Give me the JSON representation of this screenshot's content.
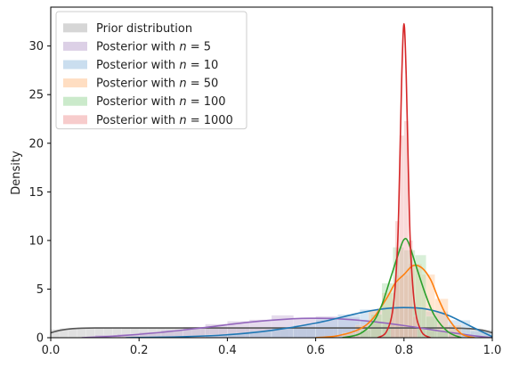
{
  "chart_data": {
    "type": "area",
    "title": "",
    "xlabel": "",
    "ylabel": "Density",
    "xlim": [
      0,
      1
    ],
    "ylim": [
      0,
      34
    ],
    "xticks": [
      0.0,
      0.2,
      0.4,
      0.6,
      0.8,
      1.0
    ],
    "xtick_labels": [
      "0.0",
      "0.2",
      "0.4",
      "0.6",
      "0.8",
      "1.0"
    ],
    "yticks": [
      0,
      5,
      10,
      15,
      20,
      25,
      30
    ],
    "ytick_labels": [
      "0",
      "5",
      "10",
      "15",
      "20",
      "25",
      "30"
    ],
    "grid": false,
    "legend": "top-left",
    "series": [
      {
        "name": "Prior distribution",
        "legend_prefix": "Prior distribution",
        "legend_n": "",
        "color": "#555555",
        "curve": {
          "x": [
            0.0,
            0.02,
            0.05,
            0.1,
            0.2,
            0.3,
            0.5,
            0.7,
            0.8,
            0.9,
            0.95,
            0.98,
            1.0
          ],
          "y": [
            0.5,
            0.75,
            0.93,
            1.0,
            1.0,
            1.0,
            1.0,
            1.0,
            1.0,
            1.0,
            0.93,
            0.75,
            0.5
          ]
        }
      },
      {
        "name": "Posterior with n = 5",
        "legend_prefix": "Posterior with ",
        "legend_n": "5",
        "color": "#9467bd",
        "curve": {
          "x": [
            0.07,
            0.15,
            0.25,
            0.35,
            0.45,
            0.55,
            0.6,
            0.65,
            0.72,
            0.8,
            0.88,
            0.95,
            1.0
          ],
          "y": [
            0.0,
            0.18,
            0.55,
            1.05,
            1.6,
            1.95,
            2.0,
            1.95,
            1.7,
            1.25,
            0.7,
            0.25,
            0.0
          ]
        }
      },
      {
        "name": "Posterior with n = 10",
        "legend_prefix": "Posterior with ",
        "legend_n": "10",
        "color": "#1f77b4",
        "curve": {
          "x": [
            0.17,
            0.3,
            0.4,
            0.5,
            0.6,
            0.7,
            0.75,
            0.8,
            0.85,
            0.9,
            0.95,
            1.0
          ],
          "y": [
            0.0,
            0.1,
            0.3,
            0.75,
            1.5,
            2.55,
            2.95,
            3.1,
            2.95,
            2.3,
            1.2,
            0.1
          ]
        }
      },
      {
        "name": "Posterior with n = 50",
        "legend_prefix": "Posterior with ",
        "legend_n": "50",
        "color": "#ff7f0e",
        "curve": {
          "x": [
            0.6,
            0.65,
            0.7,
            0.73,
            0.76,
            0.78,
            0.8,
            0.82,
            0.84,
            0.86,
            0.88,
            0.9,
            0.93,
            0.96
          ],
          "y": [
            0.0,
            0.2,
            0.9,
            2.0,
            4.0,
            5.6,
            6.5,
            7.4,
            7.2,
            6.0,
            3.8,
            2.0,
            0.4,
            0.0
          ]
        }
      },
      {
        "name": "Posterior with n = 100",
        "legend_prefix": "Posterior with ",
        "legend_n": "100",
        "color": "#2ca02c",
        "curve": {
          "x": [
            0.66,
            0.7,
            0.73,
            0.75,
            0.77,
            0.79,
            0.8,
            0.81,
            0.83,
            0.85,
            0.87,
            0.9,
            0.93
          ],
          "y": [
            0.0,
            0.4,
            1.6,
            3.4,
            6.2,
            9.0,
            10.1,
            9.8,
            7.0,
            4.3,
            2.2,
            0.6,
            0.0
          ]
        }
      },
      {
        "name": "Posterior with n = 1000",
        "legend_prefix": "Posterior with ",
        "legend_n": "1000",
        "color": "#d62728",
        "curve": {
          "x": [
            0.74,
            0.76,
            0.775,
            0.785,
            0.79,
            0.795,
            0.8,
            0.805,
            0.81,
            0.815,
            0.825,
            0.84,
            0.86
          ],
          "y": [
            0.0,
            0.6,
            3.0,
            9.0,
            17.0,
            27.0,
            32.3,
            27.0,
            17.0,
            9.0,
            3.0,
            0.6,
            0.0
          ]
        }
      }
    ],
    "histograms": [
      {
        "series": 0,
        "color": "#bbbbbb",
        "bins": [
          [
            0.0,
            0.02,
            0.85
          ],
          [
            0.02,
            0.04,
            0.95
          ],
          [
            0.04,
            0.06,
            1.0
          ],
          [
            0.06,
            0.08,
            1.05
          ],
          [
            0.08,
            0.1,
            0.95
          ],
          [
            0.1,
            0.12,
            1.0
          ],
          [
            0.12,
            0.14,
            1.05
          ],
          [
            0.14,
            0.16,
            0.95
          ],
          [
            0.16,
            0.18,
            1.0
          ],
          [
            0.18,
            0.2,
            1.05
          ],
          [
            0.2,
            0.22,
            0.95
          ],
          [
            0.22,
            0.24,
            1.0
          ],
          [
            0.24,
            0.26,
            1.05
          ],
          [
            0.26,
            0.28,
            0.95
          ],
          [
            0.28,
            0.3,
            1.0
          ],
          [
            0.3,
            0.32,
            1.05
          ],
          [
            0.32,
            0.34,
            0.95
          ],
          [
            0.34,
            0.36,
            1.0
          ],
          [
            0.36,
            0.38,
            1.05
          ],
          [
            0.38,
            0.4,
            0.95
          ],
          [
            0.4,
            0.42,
            1.0
          ],
          [
            0.42,
            0.44,
            1.05
          ],
          [
            0.44,
            0.46,
            0.95
          ],
          [
            0.46,
            0.48,
            1.0
          ],
          [
            0.48,
            0.5,
            1.05
          ],
          [
            0.5,
            0.52,
            0.95
          ],
          [
            0.52,
            0.54,
            1.0
          ],
          [
            0.54,
            0.56,
            1.05
          ],
          [
            0.56,
            0.58,
            0.95
          ],
          [
            0.58,
            0.6,
            1.0
          ],
          [
            0.6,
            0.62,
            1.05
          ],
          [
            0.62,
            0.64,
            0.95
          ],
          [
            0.64,
            0.66,
            1.0
          ],
          [
            0.66,
            0.68,
            1.05
          ],
          [
            0.68,
            0.7,
            0.95
          ],
          [
            0.7,
            0.72,
            1.0
          ],
          [
            0.72,
            0.74,
            1.05
          ],
          [
            0.74,
            0.76,
            0.95
          ],
          [
            0.76,
            0.78,
            1.0
          ],
          [
            0.78,
            0.8,
            1.05
          ],
          [
            0.8,
            0.82,
            0.95
          ],
          [
            0.82,
            0.84,
            1.0
          ],
          [
            0.84,
            0.86,
            1.05
          ],
          [
            0.86,
            0.88,
            0.95
          ],
          [
            0.88,
            0.9,
            1.0
          ],
          [
            0.9,
            0.92,
            1.05
          ],
          [
            0.92,
            0.94,
            0.95
          ],
          [
            0.94,
            0.96,
            1.0
          ],
          [
            0.96,
            0.98,
            0.9
          ],
          [
            0.98,
            1.0,
            0.8
          ]
        ]
      },
      {
        "series": 1,
        "color": "#c5b0d5",
        "bins": [
          [
            0.1,
            0.15,
            0.3
          ],
          [
            0.15,
            0.2,
            0.4
          ],
          [
            0.2,
            0.25,
            0.6
          ],
          [
            0.25,
            0.3,
            0.8
          ],
          [
            0.3,
            0.35,
            1.1
          ],
          [
            0.35,
            0.4,
            1.4
          ],
          [
            0.4,
            0.45,
            1.7
          ],
          [
            0.45,
            0.5,
            1.85
          ],
          [
            0.5,
            0.55,
            2.3
          ],
          [
            0.55,
            0.6,
            2.0
          ],
          [
            0.6,
            0.65,
            2.2
          ],
          [
            0.65,
            0.7,
            2.1
          ],
          [
            0.7,
            0.75,
            1.7
          ],
          [
            0.75,
            0.8,
            1.3
          ],
          [
            0.8,
            0.85,
            1.0
          ],
          [
            0.85,
            0.9,
            0.65
          ],
          [
            0.9,
            0.95,
            0.3
          ]
        ]
      },
      {
        "series": 2,
        "color": "#a6c8e4",
        "bins": [
          [
            0.35,
            0.4,
            0.3
          ],
          [
            0.4,
            0.45,
            0.45
          ],
          [
            0.45,
            0.5,
            0.7
          ],
          [
            0.5,
            0.55,
            1.0
          ],
          [
            0.55,
            0.6,
            1.3
          ],
          [
            0.6,
            0.65,
            1.9
          ],
          [
            0.65,
            0.7,
            2.4
          ],
          [
            0.7,
            0.75,
            2.9
          ],
          [
            0.75,
            0.8,
            3.2
          ],
          [
            0.8,
            0.85,
            3.1
          ],
          [
            0.85,
            0.9,
            2.7
          ],
          [
            0.9,
            0.95,
            1.8
          ],
          [
            0.95,
            1.0,
            0.7
          ]
        ]
      },
      {
        "series": 3,
        "color": "#ffc89a",
        "bins": [
          [
            0.66,
            0.69,
            0.5
          ],
          [
            0.69,
            0.72,
            1.3
          ],
          [
            0.72,
            0.75,
            2.8
          ],
          [
            0.75,
            0.78,
            4.6
          ],
          [
            0.78,
            0.81,
            6.4
          ],
          [
            0.81,
            0.84,
            7.6
          ],
          [
            0.84,
            0.87,
            6.5
          ],
          [
            0.87,
            0.9,
            4.0
          ],
          [
            0.9,
            0.93,
            1.3
          ]
        ]
      },
      {
        "series": 4,
        "color": "#a8dca8",
        "bins": [
          [
            0.7,
            0.725,
            0.8
          ],
          [
            0.725,
            0.75,
            2.4
          ],
          [
            0.75,
            0.775,
            5.6
          ],
          [
            0.775,
            0.8,
            9.3
          ],
          [
            0.8,
            0.825,
            9.0
          ],
          [
            0.825,
            0.85,
            8.5
          ],
          [
            0.85,
            0.875,
            2.2
          ],
          [
            0.875,
            0.9,
            0.8
          ]
        ]
      },
      {
        "series": 5,
        "color": "#f2aaaa",
        "bins": [
          [
            0.77,
            0.78,
            3.0
          ],
          [
            0.78,
            0.79,
            12.0
          ],
          [
            0.79,
            0.8,
            20.8
          ],
          [
            0.8,
            0.81,
            22.3
          ],
          [
            0.81,
            0.82,
            10.0
          ],
          [
            0.82,
            0.83,
            2.2
          ]
        ]
      }
    ]
  }
}
